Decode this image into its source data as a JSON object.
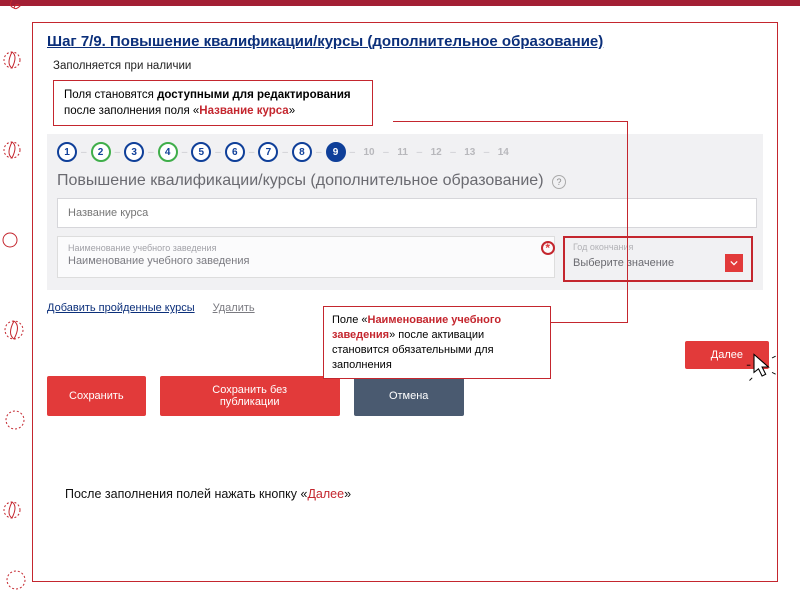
{
  "topbar_color": "#a31f34",
  "border_color": "#c4262e",
  "step_title": "Шаг 7/9. Повышение квалификации/курсы (дополнительное образование)",
  "sub_note": "Заполняется при наличии",
  "callout1": {
    "line1_pre": "Поля становятся ",
    "line1_strong": "доступными для редактирования",
    "line2_pre": "после заполнения поля «",
    "line2_red": "Название курса",
    "line2_post": "»"
  },
  "stepper": {
    "current": 9,
    "steps": [
      {
        "n": "1",
        "cls": "done-blue"
      },
      {
        "n": "2",
        "cls": "done-green"
      },
      {
        "n": "3",
        "cls": "done-blue"
      },
      {
        "n": "4",
        "cls": "done-green"
      },
      {
        "n": "5",
        "cls": "done-blue"
      },
      {
        "n": "6",
        "cls": "done-blue"
      },
      {
        "n": "7",
        "cls": "done-blue"
      },
      {
        "n": "8",
        "cls": "done-blue"
      },
      {
        "n": "9",
        "cls": "current"
      },
      {
        "n": "10",
        "cls": "future"
      },
      {
        "n": "11",
        "cls": "future"
      },
      {
        "n": "12",
        "cls": "future"
      },
      {
        "n": "13",
        "cls": "future"
      },
      {
        "n": "14",
        "cls": "future"
      }
    ],
    "title": "Повышение квалификации/курсы (дополнительное образование)"
  },
  "fields": {
    "course_name_placeholder": "Название курса",
    "institution_label": "Наименование учебного заведения",
    "institution_value": "Наименование учебного заведения",
    "year_label": "Год окончания",
    "year_value": "Выберите значение"
  },
  "links": {
    "add": "Добавить пройденные курсы",
    "remove": "Удалить"
  },
  "callout2": {
    "l1_pre": "Поле «",
    "l1_red": "Наименование учебного",
    "l2_red": "заведения",
    "l2_post": "» после активации",
    "l3": "становится обязательными для",
    "l4": "заполнения"
  },
  "buttons": {
    "save": "Сохранить",
    "save_unpub": "Сохранить без публикации",
    "cancel": "Отмена",
    "next": "Далее"
  },
  "footer": {
    "pre": "После заполнения полей нажать кнопку «",
    "red": "Далее",
    "post": "»"
  },
  "colors": {
    "accent_blue": "#0f3f99",
    "green": "#3fae4a",
    "btn_red": "#e23a3a",
    "slate": "#4a5a70"
  }
}
